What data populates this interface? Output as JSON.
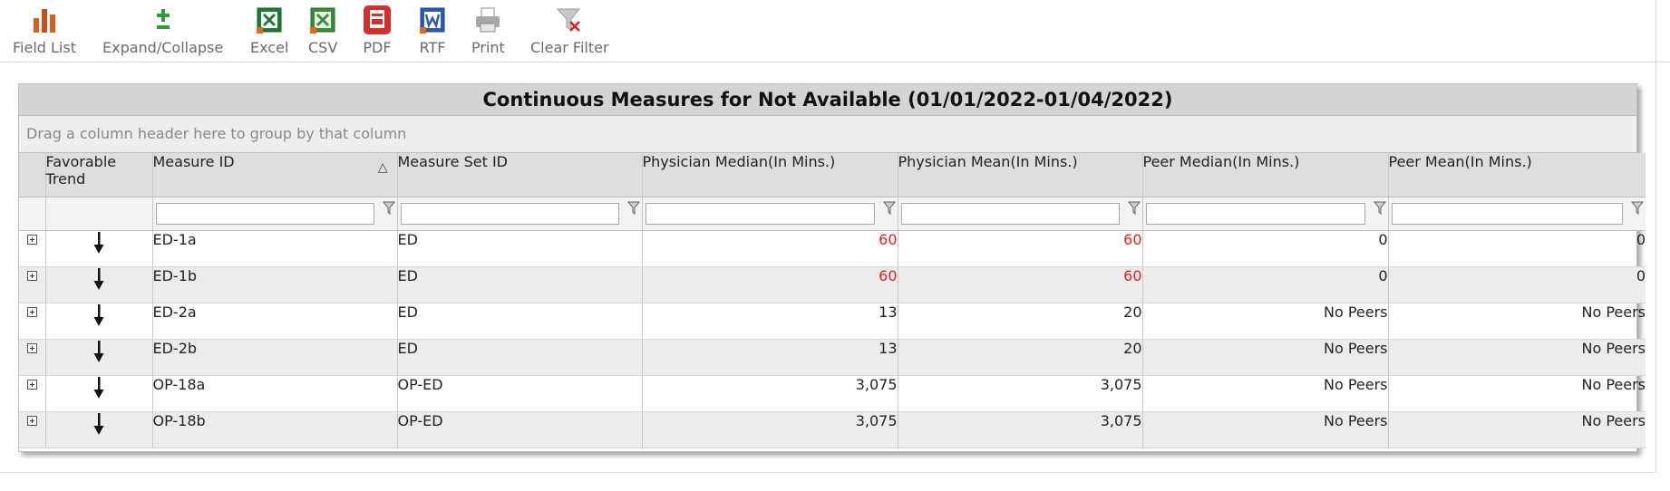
{
  "toolbar": {
    "buttons": [
      {
        "label": "Field List",
        "icon": "field-list-icon"
      },
      {
        "label": "Expand/Collapse",
        "icon": "expand-collapse-icon"
      },
      {
        "label": "Excel",
        "icon": "excel-icon"
      },
      {
        "label": "CSV",
        "icon": "csv-icon"
      },
      {
        "label": "PDF",
        "icon": "pdf-icon"
      },
      {
        "label": "RTF",
        "icon": "rtf-icon"
      },
      {
        "label": "Print",
        "icon": "print-icon"
      },
      {
        "label": "Clear Filter",
        "icon": "clear-filter-icon"
      }
    ]
  },
  "grid": {
    "title": "Continuous Measures for Not Available (01/01/2022-01/04/2022)",
    "group_hint": "Drag a column header here to group by that column",
    "columns": [
      "Favorable Trend",
      "Measure ID",
      "Measure Set ID",
      "Physician Median(In Mins.)",
      "Physician Mean(In Mins.)",
      "Peer Median(In Mins.)",
      "Peer Mean(In Mins.)"
    ],
    "sorted_column": "Measure ID",
    "sort_direction": "ascending",
    "highlight_color": "#e02020",
    "rows": [
      {
        "trend": "down-arrow-icon",
        "measure_id": "ED-1a",
        "measure_set_id": "ED",
        "phys_median": "60",
        "phys_mean": "60",
        "peer_median": "0",
        "peer_mean": "0",
        "highlight": true
      },
      {
        "trend": "down-arrow-icon",
        "measure_id": "ED-1b",
        "measure_set_id": "ED",
        "phys_median": "60",
        "phys_mean": "60",
        "peer_median": "0",
        "peer_mean": "0",
        "highlight": true
      },
      {
        "trend": "down-arrow-icon",
        "measure_id": "ED-2a",
        "measure_set_id": "ED",
        "phys_median": "13",
        "phys_mean": "20",
        "peer_median": "No Peers",
        "peer_mean": "No Peers",
        "highlight": false
      },
      {
        "trend": "down-arrow-icon",
        "measure_id": "ED-2b",
        "measure_set_id": "ED",
        "phys_median": "13",
        "phys_mean": "20",
        "peer_median": "No Peers",
        "peer_mean": "No Peers",
        "highlight": false
      },
      {
        "trend": "down-arrow-icon",
        "measure_id": "OP-18a",
        "measure_set_id": "OP-ED",
        "phys_median": "3,075",
        "phys_mean": "3,075",
        "peer_median": "No Peers",
        "peer_mean": "No Peers",
        "highlight": false
      },
      {
        "trend": "down-arrow-icon",
        "measure_id": "OP-18b",
        "measure_set_id": "OP-ED",
        "phys_median": "3,075",
        "phys_mean": "3,075",
        "peer_median": "No Peers",
        "peer_mean": "No Peers",
        "highlight": false
      }
    ]
  }
}
